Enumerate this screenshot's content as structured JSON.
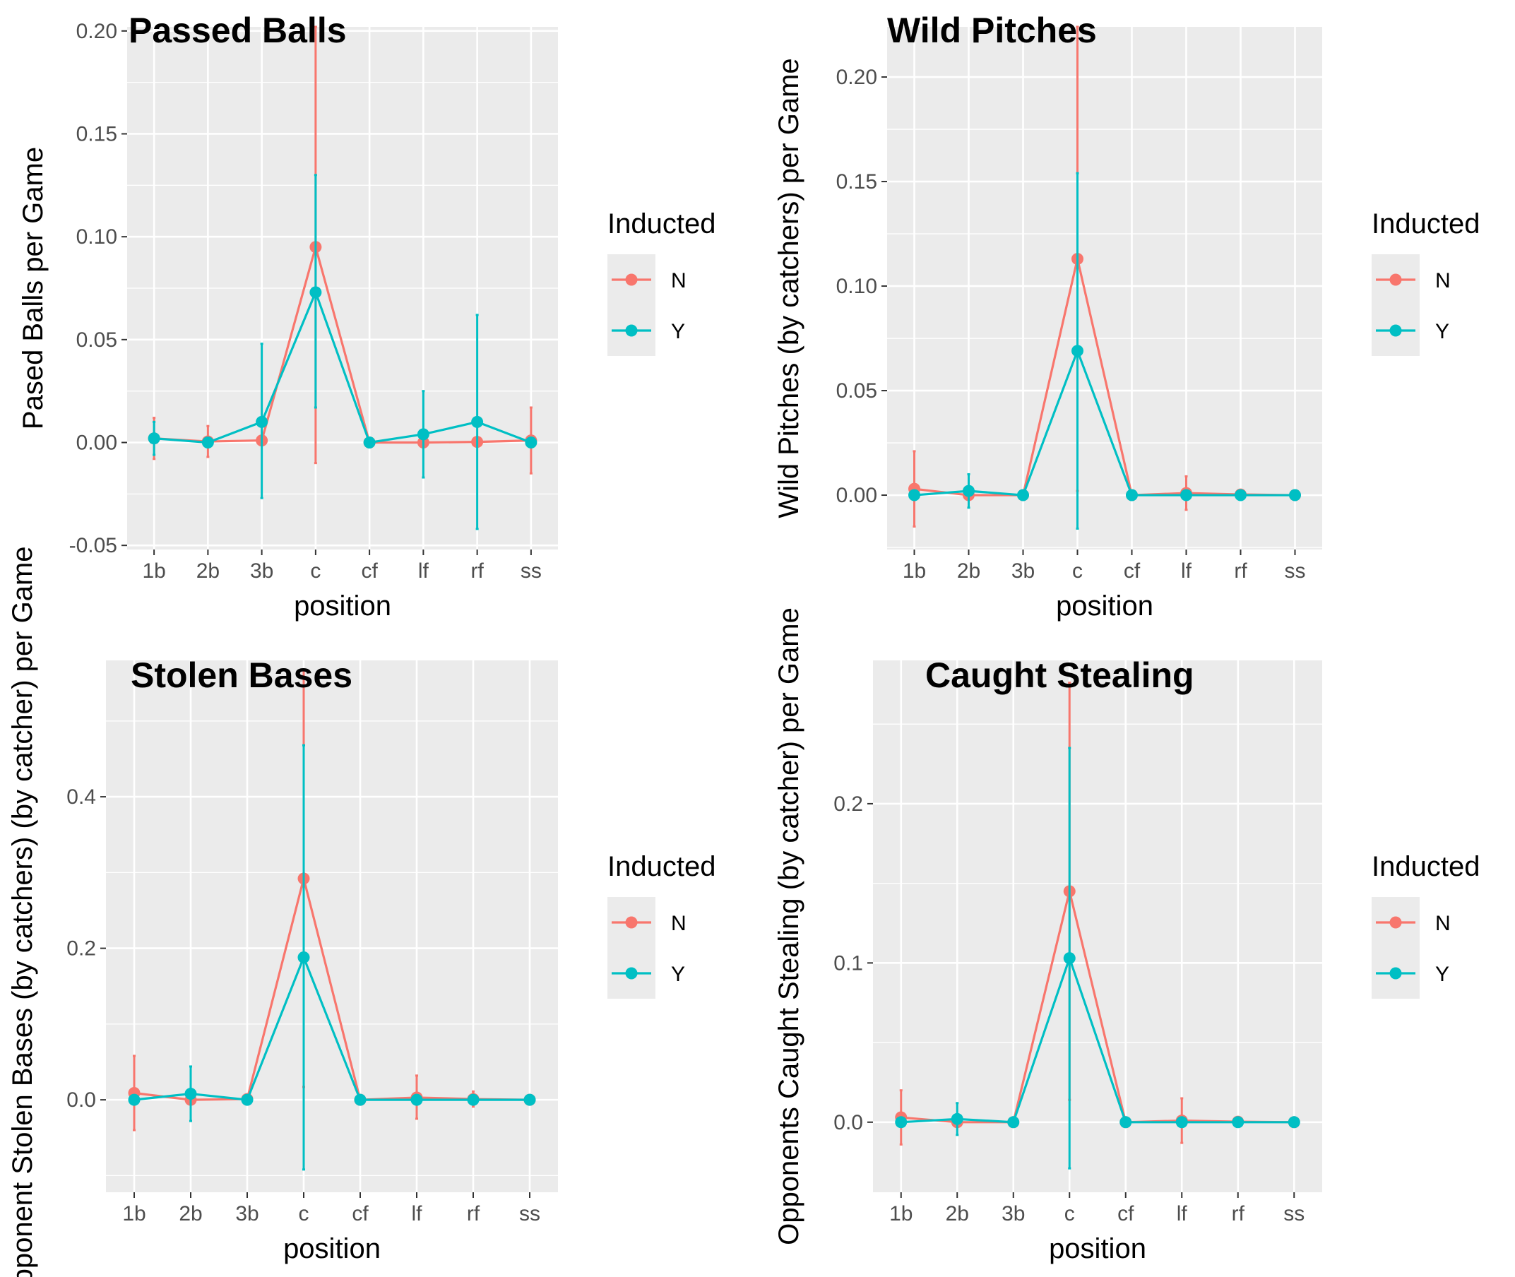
{
  "colors": {
    "N": "#F8766D",
    "Y": "#00BFC4",
    "panel_bg": "#EBEBEB",
    "grid": "#FFFFFF",
    "tick_text": "#4D4D4D"
  },
  "chart_data": [
    {
      "type": "line",
      "title": "Passed Balls",
      "xlabel": "position",
      "ylabel": "Pased Balls per Game",
      "categories": [
        "1b",
        "2b",
        "3b",
        "c",
        "cf",
        "lf",
        "rf",
        "ss"
      ],
      "ylim": [
        -0.052,
        0.202
      ],
      "yticks": [
        -0.05,
        0.0,
        0.05,
        0.1,
        0.15,
        0.2
      ],
      "ytick_labels": [
        "-0.05",
        "0.00",
        "0.05",
        "0.10",
        "0.15",
        "0.20"
      ],
      "grid": true,
      "legend": {
        "title": "Inducted",
        "entries": [
          "N",
          "Y"
        ],
        "position": "right"
      },
      "series": [
        {
          "name": "N",
          "color": "#F8766D",
          "values": [
            0.002,
            0.0005,
            0.001,
            0.095,
            0.0,
            0.0,
            0.0003,
            0.001
          ],
          "lower": [
            -0.008,
            -0.007,
            null,
            -0.01,
            null,
            null,
            null,
            -0.015
          ],
          "upper": [
            0.012,
            0.008,
            null,
            0.202,
            null,
            null,
            null,
            0.017
          ]
        },
        {
          "name": "Y",
          "color": "#00BFC4",
          "values": [
            0.002,
            0.0,
            0.01,
            0.073,
            0.0,
            0.004,
            0.01,
            0.0
          ],
          "lower": [
            -0.006,
            null,
            -0.027,
            0.017,
            null,
            -0.017,
            -0.042,
            null
          ],
          "upper": [
            0.01,
            null,
            0.048,
            0.13,
            null,
            0.025,
            0.062,
            null
          ]
        }
      ]
    },
    {
      "type": "line",
      "title": "Wild Pitches",
      "xlabel": "position",
      "ylabel": "Wild Pitches (by catchers) per Game",
      "categories": [
        "1b",
        "2b",
        "3b",
        "c",
        "cf",
        "lf",
        "rf",
        "ss"
      ],
      "ylim": [
        -0.026,
        0.224
      ],
      "yticks": [
        0.0,
        0.05,
        0.1,
        0.15,
        0.2
      ],
      "ytick_labels": [
        "0.00",
        "0.05",
        "0.10",
        "0.15",
        "0.20"
      ],
      "grid": true,
      "legend": {
        "title": "Inducted",
        "entries": [
          "N",
          "Y"
        ],
        "position": "right"
      },
      "series": [
        {
          "name": "N",
          "color": "#F8766D",
          "values": [
            0.003,
            0.0,
            0.0,
            0.113,
            0.0,
            0.001,
            0.0003,
            0.0
          ],
          "lower": [
            -0.015,
            null,
            null,
            0.002,
            null,
            -0.007,
            null,
            null
          ],
          "upper": [
            0.021,
            null,
            null,
            0.224,
            null,
            0.009,
            null,
            null
          ]
        },
        {
          "name": "Y",
          "color": "#00BFC4",
          "values": [
            0.0,
            0.002,
            0.0,
            0.069,
            0.0,
            0.0,
            0.0,
            0.0
          ],
          "lower": [
            null,
            -0.006,
            null,
            -0.016,
            null,
            null,
            null,
            null
          ],
          "upper": [
            null,
            0.01,
            null,
            0.154,
            null,
            null,
            null,
            null
          ]
        }
      ]
    },
    {
      "type": "line",
      "title": "Stolen Bases",
      "xlabel": "position",
      "ylabel": "Opponent Stolen Bases (by catchers) (by catcher) per Game",
      "categories": [
        "1b",
        "2b",
        "3b",
        "c",
        "cf",
        "lf",
        "rf",
        "ss"
      ],
      "ylim": [
        -0.122,
        0.58
      ],
      "yticks": [
        0.0,
        0.2,
        0.4
      ],
      "ytick_labels": [
        "0.0",
        "0.2",
        "0.4"
      ],
      "grid": true,
      "legend": {
        "title": "Inducted",
        "entries": [
          "N",
          "Y"
        ],
        "position": "right"
      },
      "series": [
        {
          "name": "N",
          "color": "#F8766D",
          "values": [
            0.009,
            0.0,
            0.001,
            0.292,
            0.0,
            0.003,
            0.001,
            0.0
          ],
          "lower": [
            -0.04,
            null,
            null,
            0.017,
            null,
            -0.025,
            -0.009,
            null
          ],
          "upper": [
            0.058,
            null,
            null,
            0.567,
            null,
            0.032,
            0.011,
            null
          ]
        },
        {
          "name": "Y",
          "color": "#00BFC4",
          "values": [
            0.0,
            0.008,
            0.0,
            0.188,
            0.0,
            0.0,
            0.0,
            0.0
          ],
          "lower": [
            null,
            -0.028,
            null,
            -0.092,
            null,
            null,
            null,
            null
          ],
          "upper": [
            null,
            0.044,
            null,
            0.468,
            null,
            null,
            null,
            null
          ]
        }
      ]
    },
    {
      "type": "line",
      "title": "Caught Stealing",
      "xlabel": "position",
      "ylabel": "Opponents Caught Stealing (by catcher) per Game",
      "categories": [
        "1b",
        "2b",
        "3b",
        "c",
        "cf",
        "lf",
        "rf",
        "ss"
      ],
      "ylim": [
        -0.044,
        0.29
      ],
      "yticks": [
        0.0,
        0.1,
        0.2
      ],
      "ytick_labels": [
        "0.0",
        "0.1",
        "0.2"
      ],
      "grid": true,
      "legend": {
        "title": "Inducted",
        "entries": [
          "N",
          "Y"
        ],
        "position": "right"
      },
      "series": [
        {
          "name": "N",
          "color": "#F8766D",
          "values": [
            0.003,
            0.0,
            0.0,
            0.145,
            0.0,
            0.001,
            0.0003,
            0.0
          ],
          "lower": [
            -0.014,
            null,
            null,
            0.014,
            null,
            -0.013,
            null,
            null
          ],
          "upper": [
            0.02,
            null,
            null,
            0.276,
            null,
            0.015,
            null,
            null
          ]
        },
        {
          "name": "Y",
          "color": "#00BFC4",
          "values": [
            0.0,
            0.002,
            0.0,
            0.103,
            0.0,
            0.0,
            0.0,
            0.0
          ],
          "lower": [
            null,
            -0.008,
            null,
            -0.029,
            null,
            null,
            null,
            null
          ],
          "upper": [
            null,
            0.012,
            null,
            0.235,
            null,
            null,
            null,
            null
          ]
        }
      ]
    }
  ]
}
